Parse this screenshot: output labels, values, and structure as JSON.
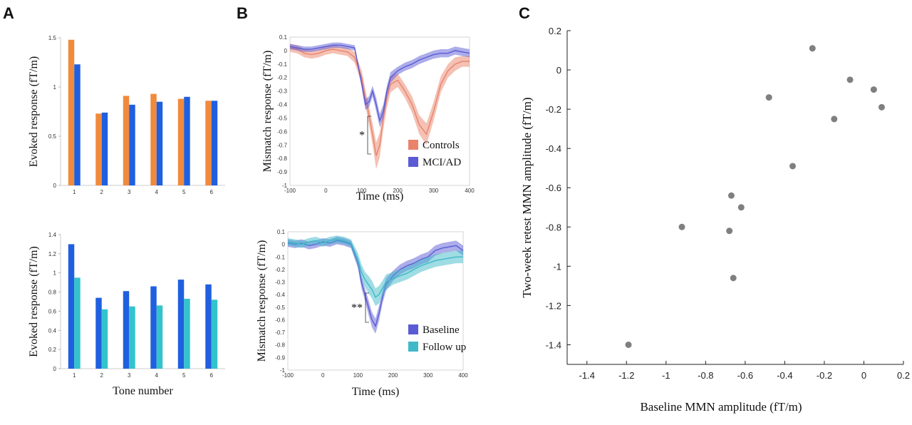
{
  "panels": {
    "A": "A",
    "B": "B",
    "C": "C"
  },
  "colors": {
    "orange": "#f08a3c",
    "blue": "#1f5fe0",
    "cyan": "#33c3cc",
    "controls_fill": "#f4a98e",
    "controls_line": "#e9836a",
    "mci_fill": "#8f8ee0",
    "mci_line": "#5b5bd6",
    "followup_fill": "#8fd8e0",
    "followup_line": "#3fb9c8",
    "scatter": "#7f7f7f"
  },
  "chart_data": [
    {
      "id": "A-top",
      "type": "bar",
      "ylabel": "Evoked response (fT/m)",
      "xlabel": "",
      "categories": [
        "1",
        "2",
        "3",
        "4",
        "5",
        "6"
      ],
      "ylim": [
        0,
        1.5
      ],
      "yticks": [
        "0",
        "0.5",
        "1",
        "1.5"
      ],
      "series": [
        {
          "color": "#f08a3c",
          "values": [
            1.48,
            0.73,
            0.91,
            0.93,
            0.88,
            0.86
          ]
        },
        {
          "color": "#1f5fe0",
          "values": [
            1.23,
            0.74,
            0.82,
            0.85,
            0.9,
            0.86
          ]
        }
      ]
    },
    {
      "id": "A-bottom",
      "type": "bar",
      "ylabel": "Evoked response (fT/m)",
      "xlabel": "Tone number",
      "categories": [
        "1",
        "2",
        "3",
        "4",
        "5",
        "6"
      ],
      "ylim": [
        0,
        1.4
      ],
      "yticks": [
        "0",
        "0.2",
        "0.4",
        "0.6",
        "0.8",
        "1",
        "1.2",
        "1.4"
      ],
      "series": [
        {
          "color": "#1f5fe0",
          "values": [
            1.3,
            0.74,
            0.81,
            0.86,
            0.93,
            0.88
          ]
        },
        {
          "color": "#33c3cc",
          "values": [
            0.95,
            0.62,
            0.65,
            0.66,
            0.73,
            0.72
          ]
        }
      ]
    },
    {
      "id": "B-top",
      "type": "area",
      "ylabel": "Mismatch response (fT/m)",
      "xlabel": "Time (ms)",
      "xlim": [
        -100,
        400
      ],
      "ylim": [
        -1,
        0.1
      ],
      "xticks": [
        "-100",
        "0",
        "100",
        "200",
        "300",
        "400"
      ],
      "yticks": [
        "0.1",
        "0",
        "-0.1",
        "-0.2",
        "-0.3",
        "-0.4",
        "-0.5",
        "-0.6",
        "-0.7",
        "-0.8",
        "-0.9",
        "-1"
      ],
      "annotation": "*",
      "series": [
        {
          "name": "Controls",
          "color": "#e9836a",
          "x": [
            -100,
            -80,
            -60,
            -40,
            -20,
            0,
            20,
            40,
            60,
            80,
            100,
            110,
            120,
            130,
            140,
            150,
            160,
            170,
            180,
            200,
            220,
            240,
            260,
            280,
            300,
            320,
            340,
            360,
            380,
            400
          ],
          "y": [
            0.02,
            0.01,
            -0.02,
            -0.03,
            -0.02,
            0.0,
            0.01,
            0.0,
            -0.01,
            -0.05,
            -0.2,
            -0.35,
            -0.48,
            -0.62,
            -0.78,
            -0.7,
            -0.5,
            -0.35,
            -0.25,
            -0.22,
            -0.3,
            -0.4,
            -0.55,
            -0.62,
            -0.45,
            -0.25,
            -0.15,
            -0.1,
            -0.08,
            -0.08
          ],
          "err": [
            0.03,
            0.03,
            0.03,
            0.03,
            0.03,
            0.03,
            0.03,
            0.03,
            0.03,
            0.04,
            0.05,
            0.06,
            0.07,
            0.08,
            0.1,
            0.09,
            0.08,
            0.07,
            0.06,
            0.05,
            0.05,
            0.06,
            0.07,
            0.08,
            0.07,
            0.06,
            0.05,
            0.05,
            0.04,
            0.04
          ]
        },
        {
          "name": "MCI/AD",
          "color": "#5b5bd6",
          "x": [
            -100,
            -80,
            -60,
            -40,
            -20,
            0,
            20,
            40,
            60,
            80,
            100,
            110,
            120,
            130,
            140,
            150,
            160,
            170,
            180,
            200,
            220,
            240,
            260,
            280,
            300,
            320,
            340,
            360,
            380,
            400
          ],
          "y": [
            0.03,
            0.02,
            0.01,
            0.01,
            0.02,
            0.03,
            0.04,
            0.04,
            0.03,
            0.02,
            -0.25,
            -0.4,
            -0.38,
            -0.3,
            -0.4,
            -0.52,
            -0.45,
            -0.3,
            -0.2,
            -0.15,
            -0.12,
            -0.1,
            -0.07,
            -0.05,
            -0.03,
            -0.02,
            -0.02,
            0.0,
            -0.01,
            -0.02
          ],
          "err": [
            0.02,
            0.02,
            0.02,
            0.02,
            0.02,
            0.02,
            0.02,
            0.02,
            0.02,
            0.02,
            0.03,
            0.04,
            0.04,
            0.04,
            0.05,
            0.05,
            0.05,
            0.04,
            0.04,
            0.03,
            0.03,
            0.03,
            0.03,
            0.03,
            0.03,
            0.03,
            0.03,
            0.03,
            0.03,
            0.03
          ]
        }
      ]
    },
    {
      "id": "B-bottom",
      "type": "area",
      "ylabel": "Mismatch response (fT/m)",
      "xlabel": "Time (ms)",
      "xlim": [
        -100,
        400
      ],
      "ylim": [
        -1,
        0.1
      ],
      "xticks": [
        "-100",
        "0",
        "100",
        "200",
        "300",
        "400"
      ],
      "yticks": [
        "0.1",
        "0",
        "-0.1",
        "-0.2",
        "-0.3",
        "-0.4",
        "-0.5",
        "-0.6",
        "-0.7",
        "-0.8",
        "-0.9",
        "-1"
      ],
      "annotation": "**",
      "series": [
        {
          "name": "Baseline",
          "color": "#5b5bd6",
          "x": [
            -100,
            -80,
            -60,
            -40,
            -20,
            0,
            20,
            40,
            60,
            80,
            100,
            110,
            120,
            130,
            140,
            150,
            160,
            170,
            180,
            200,
            220,
            240,
            260,
            280,
            300,
            320,
            340,
            360,
            380,
            400
          ],
          "y": [
            0.01,
            0.0,
            0.01,
            -0.01,
            0.0,
            0.02,
            0.01,
            0.03,
            0.02,
            0.0,
            -0.15,
            -0.3,
            -0.4,
            -0.5,
            -0.6,
            -0.65,
            -0.55,
            -0.42,
            -0.32,
            -0.25,
            -0.2,
            -0.17,
            -0.15,
            -0.12,
            -0.1,
            -0.05,
            -0.03,
            -0.02,
            -0.01,
            -0.05
          ],
          "err": [
            0.03,
            0.03,
            0.03,
            0.03,
            0.03,
            0.03,
            0.03,
            0.03,
            0.03,
            0.03,
            0.04,
            0.05,
            0.05,
            0.06,
            0.06,
            0.06,
            0.06,
            0.05,
            0.05,
            0.04,
            0.04,
            0.04,
            0.04,
            0.04,
            0.04,
            0.04,
            0.04,
            0.04,
            0.04,
            0.04
          ]
        },
        {
          "name": "Follow up",
          "color": "#3fb9c8",
          "x": [
            -100,
            -80,
            -60,
            -40,
            -20,
            0,
            20,
            40,
            60,
            80,
            100,
            110,
            120,
            130,
            140,
            150,
            160,
            170,
            180,
            200,
            220,
            240,
            260,
            280,
            300,
            320,
            340,
            360,
            380,
            400
          ],
          "y": [
            0.02,
            0.01,
            0.0,
            0.02,
            0.03,
            0.01,
            0.03,
            0.04,
            0.03,
            0.01,
            -0.12,
            -0.22,
            -0.28,
            -0.32,
            -0.36,
            -0.42,
            -0.4,
            -0.35,
            -0.3,
            -0.27,
            -0.25,
            -0.23,
            -0.2,
            -0.17,
            -0.15,
            -0.13,
            -0.12,
            -0.11,
            -0.1,
            -0.1
          ],
          "err": [
            0.03,
            0.03,
            0.03,
            0.03,
            0.03,
            0.03,
            0.03,
            0.03,
            0.03,
            0.03,
            0.05,
            0.06,
            0.06,
            0.07,
            0.07,
            0.07,
            0.07,
            0.06,
            0.06,
            0.05,
            0.05,
            0.05,
            0.05,
            0.05,
            0.05,
            0.05,
            0.05,
            0.05,
            0.05,
            0.05
          ]
        }
      ]
    },
    {
      "id": "C",
      "type": "scatter",
      "xlabel": "Baseline MMN amplitude (fT/m)",
      "ylabel": "Two-week retest MMN amplitude (fT/m)",
      "xlim": [
        -1.5,
        0.2
      ],
      "ylim": [
        -1.5,
        0.2
      ],
      "xticks": [
        "-1.4",
        "-1.2",
        "-1",
        "-0.8",
        "-0.6",
        "-0.4",
        "-0.2",
        "0",
        "0.2"
      ],
      "yticks": [
        "0.2",
        "0",
        "-0.2",
        "-0.4",
        "-0.6",
        "-0.8",
        "-1",
        "-1.2",
        "-1.4"
      ],
      "points": [
        {
          "x": -1.19,
          "y": -1.4
        },
        {
          "x": -0.92,
          "y": -0.8
        },
        {
          "x": -0.68,
          "y": -0.82
        },
        {
          "x": -0.67,
          "y": -0.64
        },
        {
          "x": -0.66,
          "y": -1.06
        },
        {
          "x": -0.62,
          "y": -0.7
        },
        {
          "x": -0.48,
          "y": -0.14
        },
        {
          "x": -0.36,
          "y": -0.49
        },
        {
          "x": -0.26,
          "y": 0.11
        },
        {
          "x": -0.15,
          "y": -0.25
        },
        {
          "x": -0.07,
          "y": -0.05
        },
        {
          "x": 0.05,
          "y": -0.1
        },
        {
          "x": 0.09,
          "y": -0.19
        }
      ]
    }
  ]
}
